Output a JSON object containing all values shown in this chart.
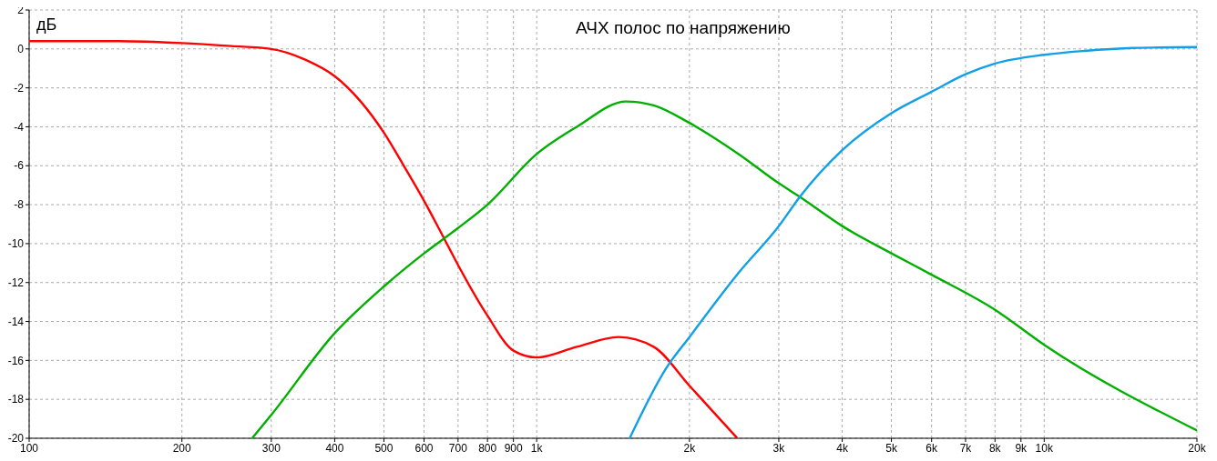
{
  "chart_data": {
    "type": "line",
    "title": "АЧХ полос по напряжению",
    "ylabel": "дБ",
    "log": "x",
    "grid": true,
    "marker": "none",
    "line_style": "solid",
    "xlim": [
      100,
      20000
    ],
    "ylim": [
      -20,
      2
    ],
    "xticks": [
      100,
      200,
      300,
      400,
      500,
      600,
      700,
      800,
      900,
      {
        "value": 1000,
        "label": "1k"
      },
      {
        "value": 2000,
        "label": "2k"
      },
      {
        "value": 3000,
        "label": "3k"
      },
      {
        "value": 4000,
        "label": "4k"
      },
      {
        "value": 5000,
        "label": "5k"
      },
      {
        "value": 6000,
        "label": "6k"
      },
      {
        "value": 7000,
        "label": "7k"
      },
      {
        "value": 8000,
        "label": "8k"
      },
      {
        "value": 9000,
        "label": "9k"
      },
      {
        "value": 10000,
        "label": "10k"
      },
      {
        "value": 20000,
        "label": "20k"
      }
    ],
    "yticks": [
      2,
      0,
      -2,
      -4,
      -6,
      -8,
      -10,
      -12,
      -14,
      -16,
      -18,
      -20
    ],
    "series": [
      {
        "color": "#ff0000",
        "x": [
          100,
          150,
          200,
          250,
          300,
          350,
          400,
          450,
          500,
          550,
          600,
          650,
          700,
          800,
          900,
          1000,
          1200,
          1450,
          1700,
          2000,
          2485
        ],
        "values": [
          0.4,
          0.4,
          0.3,
          0.15,
          0,
          -0.55,
          -1.4,
          -2.7,
          -4.3,
          -6.1,
          -7.8,
          -9.5,
          -11.1,
          -13.7,
          -15.5,
          -15.85,
          -15.3,
          -14.8,
          -15.3,
          -17.3,
          -20
        ]
      },
      {
        "color": "#00b000",
        "x": [
          275,
          300,
          400,
          500,
          600,
          700,
          800,
          1000,
          1200,
          1500,
          1700,
          2000,
          2500,
          3000,
          3300,
          4000,
          5000,
          6000,
          8000,
          10000,
          20000
        ],
        "values": [
          -20,
          -18.8,
          -14.6,
          -12.2,
          -10.5,
          -9.2,
          -8,
          -5.4,
          -4,
          -2.7,
          -2.9,
          -3.8,
          -5.4,
          -6.9,
          -7.6,
          -9.1,
          -10.5,
          -11.6,
          -13.4,
          -15.2,
          -19.6
        ]
      },
      {
        "color": "#10a0e8",
        "x": [
          1525,
          1800,
          2000,
          2500,
          3000,
          3300,
          4000,
          5000,
          6000,
          7000,
          8000,
          10000,
          12000,
          15000,
          20000
        ],
        "values": [
          -20,
          -16.4,
          -14.8,
          -11.5,
          -9.1,
          -7.6,
          -5.2,
          -3.3,
          -2.2,
          -1.3,
          -0.75,
          -0.3,
          -0.1,
          0.05,
          0.1
        ]
      }
    ]
  }
}
